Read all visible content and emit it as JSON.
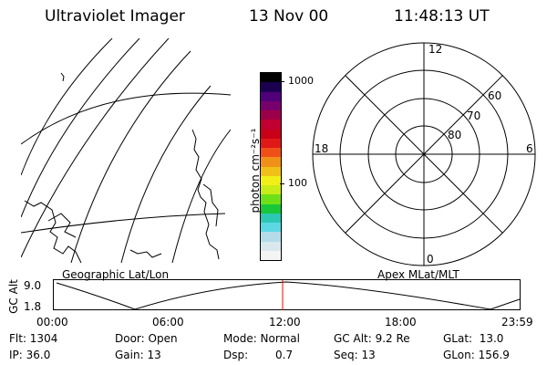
{
  "header": {
    "instrument": "Ultraviolet Imager",
    "date": "13 Nov 00",
    "time": "11:48:13 UT"
  },
  "colorbar": {
    "unit_label": "photon cm⁻²s⁻¹",
    "tick_high": "1000",
    "tick_low": "100",
    "colors": [
      "#f4f4f4",
      "#d8e8ec",
      "#b4dce8",
      "#5cd8e4",
      "#2cc8b4",
      "#18c838",
      "#6ee018",
      "#c8ec18",
      "#f0f018",
      "#f0c018",
      "#f09018",
      "#f05018",
      "#e01818",
      "#c80018",
      "#c00030",
      "#9c0048",
      "#78006c",
      "#500078",
      "#1c0050",
      "#000000"
    ]
  },
  "polar": {
    "labels": {
      "top": "12",
      "left": "18",
      "right": "6",
      "bottom": "0"
    },
    "lat_labels": [
      "60",
      "70",
      "80"
    ]
  },
  "maps": {
    "left_caption": "Geographic Lat/Lon",
    "right_caption": "Apex MLat/MLT"
  },
  "altitude": {
    "ylabel": "GC Alt",
    "ytick_top": "9.0",
    "ytick_bottom": "1.8",
    "xticks": [
      "00:00",
      "06:00",
      "12:00",
      "18:00",
      "23:59"
    ],
    "marker_color": "#ff0000"
  },
  "status": {
    "flt": "Flt: 1304",
    "ip": "IP: 36.0",
    "door": "Door: Open",
    "gain": "Gain: 13",
    "mode": "Mode: Normal",
    "dsp_label": "Dsp:",
    "dsp_value": "0.7",
    "gcalt": "GC Alt: 9.2 Re",
    "seq": "Seq: 13",
    "glat": "GLat:  13.0",
    "glon": "GLon: 156.9"
  }
}
